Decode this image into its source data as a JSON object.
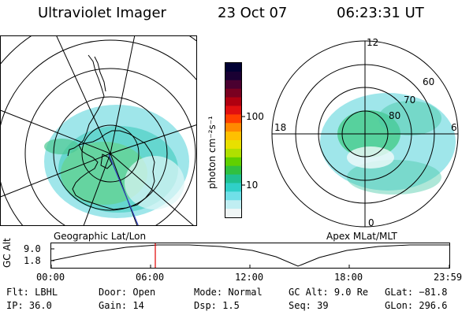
{
  "header": {
    "title": "Ultraviolet Imager",
    "date": "23 Oct 07",
    "time": "06:23:31 UT"
  },
  "colorbar": {
    "unit_label": "photon cm⁻²s⁻¹",
    "ticks": [
      "100",
      "10"
    ],
    "colors": [
      "#000033",
      "#1a0033",
      "#4a0030",
      "#7a0020",
      "#b00010",
      "#e01010",
      "#ff4000",
      "#ff8a00",
      "#ffc000",
      "#e8e000",
      "#b0e000",
      "#60d000",
      "#30c040",
      "#20c090",
      "#30d0c8",
      "#70e0e8",
      "#c0eef2",
      "#f0f6f6"
    ]
  },
  "left_map": {
    "caption": "Geographic Lat/Lon"
  },
  "right_map": {
    "caption": "Apex MLat/MLT",
    "mlt_labels": [
      "12",
      "18",
      "6",
      "0"
    ],
    "lat_labels": [
      "60",
      "70",
      "80"
    ]
  },
  "timeline": {
    "ylabel": "GC Alt",
    "y_ticks": [
      "9.0",
      "1.8"
    ],
    "x_ticks": [
      "00:00",
      "06:00",
      "12:00",
      "18:00",
      "23:59"
    ],
    "current_time_marker": "06:23"
  },
  "info": {
    "row1": [
      {
        "key": "Flt:",
        "value": "LBHL"
      },
      {
        "key": "Door:",
        "value": "Open"
      },
      {
        "key": "Mode:",
        "value": "Normal"
      },
      {
        "key": "GC Alt:",
        "value": "9.0 Re"
      },
      {
        "key": "GLat:",
        "value": "−81.8"
      }
    ],
    "row2": [
      {
        "key": "IP:",
        "value": "36.0"
      },
      {
        "key": "Gain:",
        "value": "14"
      },
      {
        "key": "Dsp:",
        "value": "1.5"
      },
      {
        "key": "Seq:",
        "value": "39"
      },
      {
        "key": "GLon:",
        "value": "296.6"
      }
    ]
  }
}
